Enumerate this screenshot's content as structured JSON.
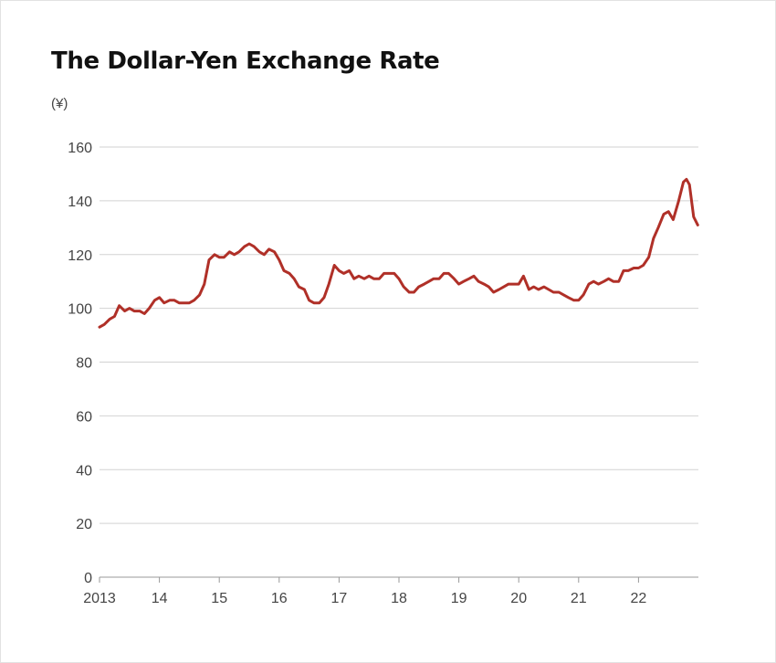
{
  "page": {
    "title": "The Dollar-Yen Exchange Rate",
    "unit_label": "(¥)"
  },
  "chart_data": {
    "type": "line",
    "title": "The Dollar-Yen Exchange Rate",
    "ylabel": "(¥)",
    "xlabel": "",
    "ylim": [
      0,
      160
    ],
    "xlim": [
      2013.0,
      2023.0
    ],
    "y_ticks": [
      0,
      20,
      40,
      60,
      80,
      100,
      120,
      140,
      160
    ],
    "y_tick_labels": [
      "0",
      "20",
      "40",
      "60",
      "80",
      "100",
      "120",
      "140",
      "160"
    ],
    "x_ticks": [
      2013,
      2014,
      2015,
      2016,
      2017,
      2018,
      2019,
      2020,
      2021,
      2022
    ],
    "x_tick_labels": [
      "2013",
      "14",
      "15",
      "16",
      "17",
      "18",
      "19",
      "20",
      "21",
      "22"
    ],
    "grid": "horizontal",
    "legend": "none",
    "series": [
      {
        "color": "#b03028",
        "points": [
          [
            2013.0,
            93
          ],
          [
            2013.08,
            94
          ],
          [
            2013.17,
            96
          ],
          [
            2013.25,
            97
          ],
          [
            2013.33,
            101
          ],
          [
            2013.42,
            99
          ],
          [
            2013.5,
            100
          ],
          [
            2013.58,
            99
          ],
          [
            2013.67,
            99
          ],
          [
            2013.75,
            98
          ],
          [
            2013.83,
            100
          ],
          [
            2013.92,
            103
          ],
          [
            2014.0,
            104
          ],
          [
            2014.08,
            102
          ],
          [
            2014.17,
            103
          ],
          [
            2014.25,
            103
          ],
          [
            2014.33,
            102
          ],
          [
            2014.42,
            102
          ],
          [
            2014.5,
            102
          ],
          [
            2014.58,
            103
          ],
          [
            2014.67,
            105
          ],
          [
            2014.75,
            109
          ],
          [
            2014.83,
            118
          ],
          [
            2014.92,
            120
          ],
          [
            2015.0,
            119
          ],
          [
            2015.08,
            119
          ],
          [
            2015.17,
            121
          ],
          [
            2015.25,
            120
          ],
          [
            2015.33,
            121
          ],
          [
            2015.42,
            123
          ],
          [
            2015.5,
            124
          ],
          [
            2015.58,
            123
          ],
          [
            2015.67,
            121
          ],
          [
            2015.75,
            120
          ],
          [
            2015.83,
            122
          ],
          [
            2015.92,
            121
          ],
          [
            2016.0,
            118
          ],
          [
            2016.08,
            114
          ],
          [
            2016.17,
            113
          ],
          [
            2016.25,
            111
          ],
          [
            2016.33,
            108
          ],
          [
            2016.42,
            107
          ],
          [
            2016.5,
            103
          ],
          [
            2016.58,
            102
          ],
          [
            2016.67,
            102
          ],
          [
            2016.75,
            104
          ],
          [
            2016.83,
            109
          ],
          [
            2016.92,
            116
          ],
          [
            2017.0,
            114
          ],
          [
            2017.08,
            113
          ],
          [
            2017.17,
            114
          ],
          [
            2017.25,
            111
          ],
          [
            2017.33,
            112
          ],
          [
            2017.42,
            111
          ],
          [
            2017.5,
            112
          ],
          [
            2017.58,
            111
          ],
          [
            2017.67,
            111
          ],
          [
            2017.75,
            113
          ],
          [
            2017.83,
            113
          ],
          [
            2017.92,
            113
          ],
          [
            2018.0,
            111
          ],
          [
            2018.08,
            108
          ],
          [
            2018.17,
            106
          ],
          [
            2018.25,
            106
          ],
          [
            2018.33,
            108
          ],
          [
            2018.42,
            109
          ],
          [
            2018.5,
            110
          ],
          [
            2018.58,
            111
          ],
          [
            2018.67,
            111
          ],
          [
            2018.75,
            113
          ],
          [
            2018.83,
            113
          ],
          [
            2018.92,
            111
          ],
          [
            2019.0,
            109
          ],
          [
            2019.08,
            110
          ],
          [
            2019.17,
            111
          ],
          [
            2019.25,
            112
          ],
          [
            2019.33,
            110
          ],
          [
            2019.42,
            109
          ],
          [
            2019.5,
            108
          ],
          [
            2019.58,
            106
          ],
          [
            2019.67,
            107
          ],
          [
            2019.75,
            108
          ],
          [
            2019.83,
            109
          ],
          [
            2019.92,
            109
          ],
          [
            2020.0,
            109
          ],
          [
            2020.08,
            112
          ],
          [
            2020.17,
            107
          ],
          [
            2020.25,
            108
          ],
          [
            2020.33,
            107
          ],
          [
            2020.42,
            108
          ],
          [
            2020.5,
            107
          ],
          [
            2020.58,
            106
          ],
          [
            2020.67,
            106
          ],
          [
            2020.75,
            105
          ],
          [
            2020.83,
            104
          ],
          [
            2020.92,
            103
          ],
          [
            2021.0,
            103
          ],
          [
            2021.08,
            105
          ],
          [
            2021.17,
            109
          ],
          [
            2021.25,
            110
          ],
          [
            2021.33,
            109
          ],
          [
            2021.42,
            110
          ],
          [
            2021.5,
            111
          ],
          [
            2021.58,
            110
          ],
          [
            2021.67,
            110
          ],
          [
            2021.75,
            114
          ],
          [
            2021.83,
            114
          ],
          [
            2021.92,
            115
          ],
          [
            2022.0,
            115
          ],
          [
            2022.08,
            116
          ],
          [
            2022.17,
            119
          ],
          [
            2022.25,
            126
          ],
          [
            2022.33,
            130
          ],
          [
            2022.42,
            135
          ],
          [
            2022.5,
            136
          ],
          [
            2022.58,
            133
          ],
          [
            2022.67,
            140
          ],
          [
            2022.75,
            147
          ],
          [
            2022.8,
            148
          ],
          [
            2022.85,
            146
          ],
          [
            2022.92,
            134
          ],
          [
            2022.99,
            131
          ]
        ]
      }
    ]
  }
}
